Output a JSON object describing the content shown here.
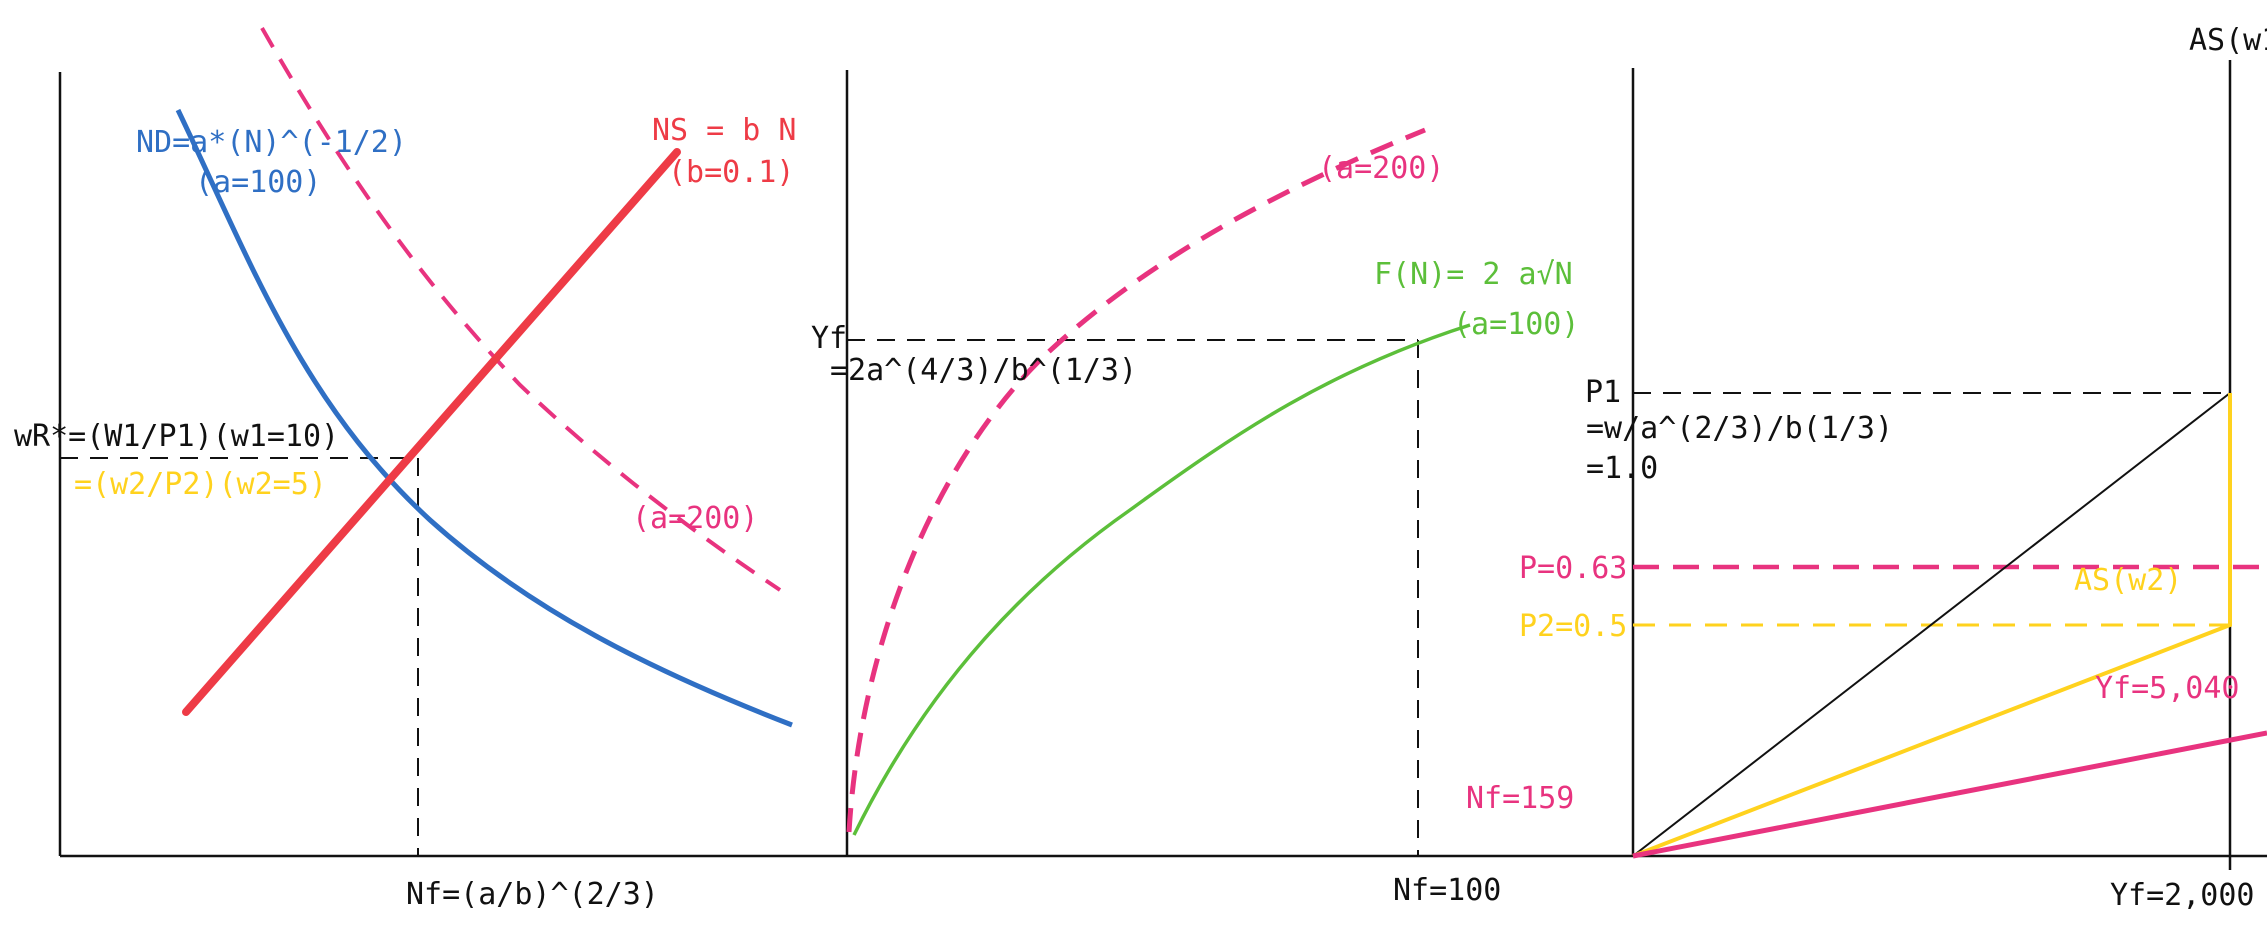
{
  "colors": {
    "black": "#111111",
    "blue": "#2f6fc4",
    "red": "#ee3b46",
    "pink": "#e8337f",
    "green": "#5cbf3a",
    "yellow": "#ffd21e",
    "background": "#ffffff"
  },
  "panel_left": {
    "nd_formula": "ND=a*(N)^(-1/2)",
    "nd_param": "(a=100)",
    "ns_formula": "NS = b N",
    "ns_param": "(b=0.1)",
    "wr_label": "wR*=(W1/P1)(w1=10)",
    "wr2_label": "=(w2/P2)(w2=5)",
    "nd_shift_label": "(a=200)",
    "nf_label": "Nf=(a/b)^(2/3)"
  },
  "panel_middle": {
    "shift_label": "(a=200)",
    "fn_formula": "F(N)= 2 a√N",
    "fn_param": "(a=100)",
    "yf_label": "Yf",
    "yf_formula": "=2a^(4/3)/b^(1/3)",
    "nf_pink": "Nf=159",
    "nf_value": "Nf=100"
  },
  "panel_right": {
    "as_w1": "AS(w1",
    "p1_label": "P1",
    "p1_formula": "=w/a^(2/3)/b(1/3)",
    "p1_value": "=1.0",
    "p_063": "P=0.63",
    "p2_label": "P2=0.5",
    "as_w2": "AS(w2)",
    "yf_pink": "Yf=5,040",
    "yf_value": "Yf=2,000"
  }
}
